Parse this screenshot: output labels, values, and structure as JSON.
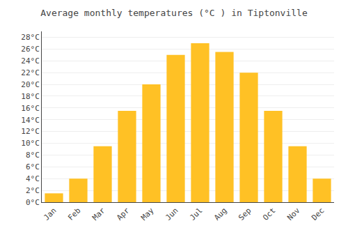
{
  "chart_data": {
    "type": "bar",
    "title": "Average monthly temperatures (°C ) in Tiptonville",
    "categories": [
      "Jan",
      "Feb",
      "Mar",
      "Apr",
      "May",
      "Jun",
      "Jul",
      "Aug",
      "Sep",
      "Oct",
      "Nov",
      "Dec"
    ],
    "values": [
      1.5,
      4.0,
      9.5,
      15.5,
      20.0,
      25.0,
      27.0,
      25.5,
      22.0,
      15.5,
      9.5,
      4.0
    ],
    "color": "#FFC125",
    "ylim": [
      0,
      29
    ],
    "yticks": [
      {
        "value": 0,
        "label": "0°C"
      },
      {
        "value": 2,
        "label": "2°C"
      },
      {
        "value": 4,
        "label": "4°C"
      },
      {
        "value": 6,
        "label": "6°C"
      },
      {
        "value": 8,
        "label": "8°C"
      },
      {
        "value": 10,
        "label": "10°C"
      },
      {
        "value": 12,
        "label": "12°C"
      },
      {
        "value": 14,
        "label": "14°C"
      },
      {
        "value": 16,
        "label": "16°C"
      },
      {
        "value": 18,
        "label": "18°C"
      },
      {
        "value": 20,
        "label": "20°C"
      },
      {
        "value": 22,
        "label": "22°C"
      },
      {
        "value": 24,
        "label": "24°C"
      },
      {
        "value": 26,
        "label": "26°C"
      },
      {
        "value": 28,
        "label": "28°C"
      }
    ],
    "grid": true
  }
}
